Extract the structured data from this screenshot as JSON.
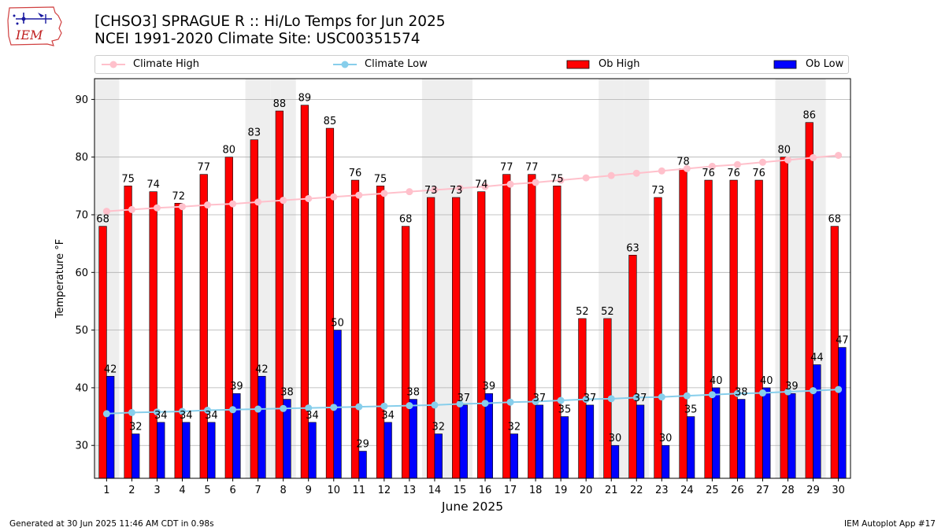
{
  "header": {
    "logo_text": "IEM",
    "title_line1": "[CHSO3] SPRAGUE R :: Hi/Lo Temps for Jun 2025",
    "title_line2": "NCEI 1991-2020 Climate Site: USC00351574"
  },
  "legend": {
    "climate_high": "Climate High",
    "climate_low": "Climate Low",
    "ob_high": "Ob High",
    "ob_low": "Ob Low"
  },
  "footer": {
    "generated": "Generated at 30 Jun 2025 11:46 AM CDT in 0.98s",
    "app": "IEM Autoplot App #17"
  },
  "colors": {
    "ob_high": "#ff0000",
    "ob_low": "#0000ff",
    "climate_high": "#ffc0cb",
    "climate_low": "#87ceeb",
    "weekend_shade": "#eeeeee",
    "grid": "#b0b0b0"
  },
  "chart_data": {
    "type": "bar",
    "title": "[CHSO3] SPRAGUE R :: Hi/Lo Temps for Jun 2025",
    "subtitle": "NCEI 1991-2020 Climate Site: USC00351574",
    "xlabel": "June 2025",
    "ylabel": "Temperature °F",
    "ylim": [
      24.3,
      93.6
    ],
    "yticks": [
      30,
      40,
      50,
      60,
      70,
      80,
      90
    ],
    "grid": true,
    "legend_position": "top",
    "categories": [
      1,
      2,
      3,
      4,
      5,
      6,
      7,
      8,
      9,
      10,
      11,
      12,
      13,
      14,
      15,
      16,
      17,
      18,
      19,
      20,
      21,
      22,
      23,
      24,
      25,
      26,
      27,
      28,
      29,
      30
    ],
    "shaded_days": [
      1,
      7,
      8,
      14,
      15,
      21,
      22,
      28,
      29
    ],
    "series": [
      {
        "name": "Ob High",
        "kind": "bar",
        "values": [
          68,
          75,
          74,
          72,
          77,
          80,
          83,
          88,
          89,
          85,
          76,
          75,
          68,
          73,
          73,
          74,
          77,
          77,
          75,
          52,
          52,
          63,
          73,
          78,
          76,
          76,
          76,
          80,
          86,
          68
        ]
      },
      {
        "name": "Ob Low",
        "kind": "bar",
        "values": [
          42,
          32,
          34,
          34,
          34,
          39,
          42,
          38,
          34,
          50,
          29,
          34,
          38,
          32,
          37,
          39,
          32,
          37,
          35,
          37,
          30,
          37,
          30,
          35,
          40,
          38,
          40,
          39,
          44,
          47
        ]
      },
      {
        "name": "Climate High",
        "kind": "line",
        "values": [
          70.6,
          70.9,
          71.2,
          71.4,
          71.7,
          71.9,
          72.2,
          72.5,
          72.8,
          73.1,
          73.4,
          73.7,
          74.0,
          74.3,
          74.6,
          74.9,
          75.3,
          75.6,
          76.0,
          76.4,
          76.8,
          77.2,
          77.6,
          78.0,
          78.4,
          78.7,
          79.1,
          79.5,
          79.9,
          80.3
        ]
      },
      {
        "name": "Climate Low",
        "kind": "line",
        "values": [
          35.5,
          35.7,
          35.8,
          35.9,
          36.1,
          36.2,
          36.3,
          36.4,
          36.5,
          36.6,
          36.7,
          36.8,
          36.9,
          37.0,
          37.2,
          37.3,
          37.5,
          37.6,
          37.8,
          38.0,
          38.1,
          38.3,
          38.4,
          38.6,
          38.8,
          39.0,
          39.1,
          39.3,
          39.5,
          39.7
        ]
      }
    ]
  }
}
